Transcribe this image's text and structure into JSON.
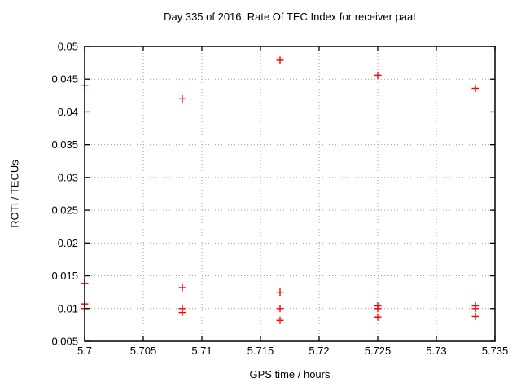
{
  "window": {
    "background": "#ffffff"
  },
  "colors": {
    "marker": "#ff0000",
    "grid": "#9e9e9e",
    "frame": "#000000",
    "text": "#000000"
  },
  "chart_data": {
    "type": "scatter",
    "title": "Day 335 of 2016, Rate Of TEC Index for receiver paat",
    "xlabel": "GPS time / hours",
    "ylabel": "ROTI / TECUs",
    "xlim": [
      5.7,
      5.735
    ],
    "ylim": [
      0.005,
      0.05
    ],
    "xticks": [
      {
        "v": 5.7,
        "label": "5.7"
      },
      {
        "v": 5.705,
        "label": "5.705"
      },
      {
        "v": 5.71,
        "label": "5.71"
      },
      {
        "v": 5.715,
        "label": "5.715"
      },
      {
        "v": 5.72,
        "label": "5.72"
      },
      {
        "v": 5.725,
        "label": "5.725"
      },
      {
        "v": 5.73,
        "label": "5.73"
      },
      {
        "v": 5.735,
        "label": "5.735"
      }
    ],
    "yticks": [
      {
        "v": 0.005,
        "label": "0.005"
      },
      {
        "v": 0.01,
        "label": "0.01"
      },
      {
        "v": 0.015,
        "label": "0.015"
      },
      {
        "v": 0.02,
        "label": "0.02"
      },
      {
        "v": 0.025,
        "label": "0.025"
      },
      {
        "v": 0.03,
        "label": "0.03"
      },
      {
        "v": 0.035,
        "label": "0.035"
      },
      {
        "v": 0.04,
        "label": "0.04"
      },
      {
        "v": 0.045,
        "label": "0.045"
      },
      {
        "v": 0.05,
        "label": "0.05"
      }
    ],
    "grid": true,
    "legend_position": "none",
    "marker": {
      "shape": "plus",
      "color": "#ff0000",
      "size": 9
    },
    "series": [
      {
        "name": "ROTI",
        "points": [
          [
            5.7,
            0.044
          ],
          [
            5.7,
            0.0138
          ],
          [
            5.7,
            0.0107
          ],
          [
            5.7,
            0.01
          ],
          [
            5.708333,
            0.042
          ],
          [
            5.708333,
            0.0132
          ],
          [
            5.708333,
            0.01
          ],
          [
            5.708333,
            0.0094
          ],
          [
            5.716667,
            0.0479
          ],
          [
            5.716667,
            0.0125
          ],
          [
            5.716667,
            0.01
          ],
          [
            5.716667,
            0.0082
          ],
          [
            5.725,
            0.0456
          ],
          [
            5.725,
            0.0104
          ],
          [
            5.725,
            0.01
          ],
          [
            5.725,
            0.0087
          ],
          [
            5.733333,
            0.0436
          ],
          [
            5.733333,
            0.0104
          ],
          [
            5.733333,
            0.01
          ],
          [
            5.733333,
            0.0088
          ]
        ]
      }
    ]
  }
}
